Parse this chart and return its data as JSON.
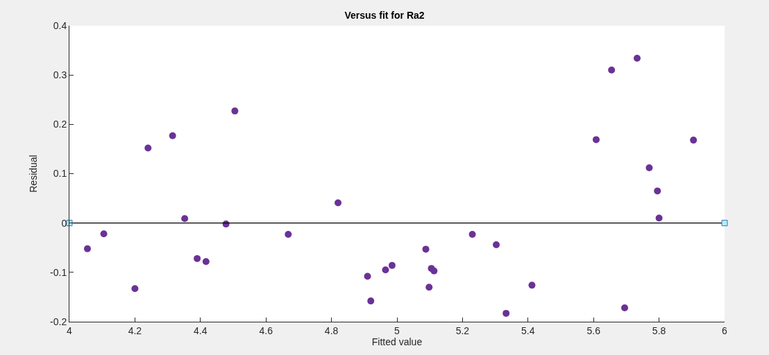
{
  "chart_data": {
    "type": "scatter",
    "title": "Versus fit for Ra2",
    "xlabel": "Fitted value",
    "ylabel": "Residual",
    "xlim": [
      4,
      6
    ],
    "xticks": [
      4,
      4.2,
      4.4,
      4.6,
      4.8,
      5,
      5.2,
      5.4,
      5.6,
      5.8,
      6
    ],
    "ylim": [
      -0.2,
      0.4
    ],
    "yticks": [
      -0.2,
      -0.1,
      0,
      0.1,
      0.2,
      0.3,
      0.4
    ],
    "series": [
      {
        "color": "#6a3296",
        "marker": "circle",
        "x": [
          4.055,
          4.105,
          4.2,
          4.24,
          4.315,
          4.352,
          4.39,
          4.417,
          4.478,
          4.505,
          4.668,
          4.82,
          4.91,
          4.92,
          4.965,
          4.985,
          5.088,
          5.098,
          5.105,
          5.113,
          5.23,
          5.303,
          5.333,
          5.412,
          5.608,
          5.655,
          5.695,
          5.733,
          5.77,
          5.795,
          5.8,
          5.905
        ],
        "values": [
          -0.052,
          -0.022,
          -0.133,
          0.152,
          0.177,
          0.009,
          -0.072,
          -0.078,
          -0.002,
          0.227,
          -0.023,
          0.041,
          -0.108,
          -0.158,
          -0.095,
          -0.086,
          -0.053,
          -0.13,
          -0.092,
          -0.097,
          -0.023,
          -0.044,
          -0.183,
          -0.126,
          0.169,
          0.31,
          -0.172,
          0.334,
          0.112,
          0.065,
          0.01,
          0.168
        ]
      },
      {
        "type": "line",
        "color": "#000000",
        "marker": "square",
        "x": [
          4,
          6
        ],
        "values": [
          0,
          0
        ]
      }
    ]
  }
}
